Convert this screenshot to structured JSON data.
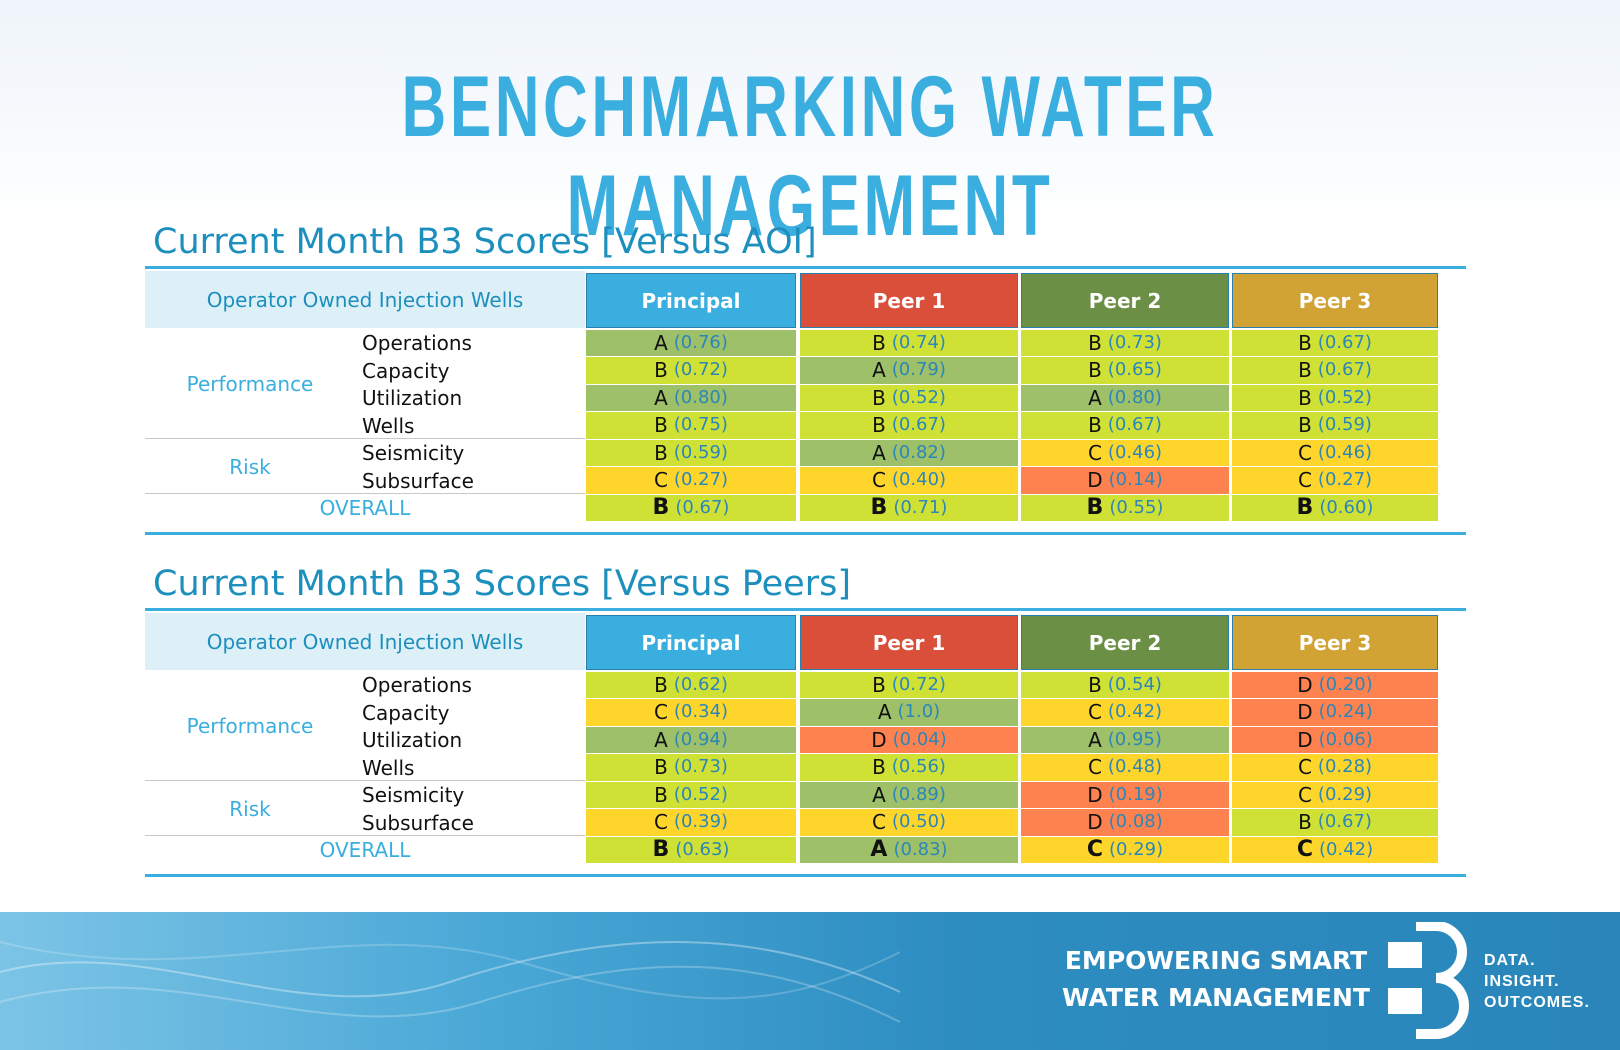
{
  "page_title": "BENCHMARKING WATER MANAGEMENT",
  "header_left": "Operator Owned Injection Wells",
  "columns": [
    {
      "label": "Principal",
      "color": "#3aaede"
    },
    {
      "label": "Peer 1",
      "color": "#d94f3a"
    },
    {
      "label": "Peer 2",
      "color": "#6b8f45"
    },
    {
      "label": "Peer 3",
      "color": "#d1a234"
    }
  ],
  "groups": {
    "performance": "Performance",
    "risk": "Risk",
    "overall": "OVERALL"
  },
  "metrics": [
    "Operations",
    "Capacity",
    "Utilization",
    "Wells",
    "Seismicity",
    "Subsurface"
  ],
  "grade_colors": {
    "A": "#9dc069",
    "B": "#d0e136",
    "C": "#fed62b",
    "D": "#fe8250"
  },
  "tables": [
    {
      "title": "Current Month B3 Scores [Versus AOI]",
      "rows": [
        [
          {
            "g": "A",
            "v": "(0.76)"
          },
          {
            "g": "B",
            "v": "(0.74)"
          },
          {
            "g": "B",
            "v": "(0.73)"
          },
          {
            "g": "B",
            "v": "(0.67)"
          }
        ],
        [
          {
            "g": "B",
            "v": "(0.72)"
          },
          {
            "g": "A",
            "v": "(0.79)"
          },
          {
            "g": "B",
            "v": "(0.65)"
          },
          {
            "g": "B",
            "v": "(0.67)"
          }
        ],
        [
          {
            "g": "A",
            "v": "(0.80)"
          },
          {
            "g": "B",
            "v": "(0.52)"
          },
          {
            "g": "A",
            "v": "(0.80)"
          },
          {
            "g": "B",
            "v": "(0.52)"
          }
        ],
        [
          {
            "g": "B",
            "v": "(0.75)"
          },
          {
            "g": "B",
            "v": "(0.67)"
          },
          {
            "g": "B",
            "v": "(0.67)"
          },
          {
            "g": "B",
            "v": "(0.59)"
          }
        ],
        [
          {
            "g": "B",
            "v": "(0.59)"
          },
          {
            "g": "A",
            "v": "(0.82)"
          },
          {
            "g": "C",
            "v": "(0.46)"
          },
          {
            "g": "C",
            "v": "(0.46)"
          }
        ],
        [
          {
            "g": "C",
            "v": "(0.27)"
          },
          {
            "g": "C",
            "v": "(0.40)"
          },
          {
            "g": "D",
            "v": "(0.14)"
          },
          {
            "g": "C",
            "v": "(0.27)"
          }
        ],
        [
          {
            "g": "B",
            "v": "(0.67)"
          },
          {
            "g": "B",
            "v": "(0.71)"
          },
          {
            "g": "B",
            "v": "(0.55)"
          },
          {
            "g": "B",
            "v": "(0.60)"
          }
        ]
      ]
    },
    {
      "title": "Current Month B3 Scores [Versus Peers]",
      "rows": [
        [
          {
            "g": "B",
            "v": "(0.62)"
          },
          {
            "g": "B",
            "v": "(0.72)"
          },
          {
            "g": "B",
            "v": "(0.54)"
          },
          {
            "g": "D",
            "v": "(0.20)"
          }
        ],
        [
          {
            "g": "C",
            "v": "(0.34)"
          },
          {
            "g": "A",
            "v": "(1.0)"
          },
          {
            "g": "C",
            "v": "(0.42)"
          },
          {
            "g": "D",
            "v": "(0.24)"
          }
        ],
        [
          {
            "g": "A",
            "v": "(0.94)"
          },
          {
            "g": "D",
            "v": "(0.04)"
          },
          {
            "g": "A",
            "v": "(0.95)"
          },
          {
            "g": "D",
            "v": "(0.06)"
          }
        ],
        [
          {
            "g": "B",
            "v": "(0.73)"
          },
          {
            "g": "B",
            "v": "(0.56)"
          },
          {
            "g": "C",
            "v": "(0.48)"
          },
          {
            "g": "C",
            "v": "(0.28)"
          }
        ],
        [
          {
            "g": "B",
            "v": "(0.52)"
          },
          {
            "g": "A",
            "v": "(0.89)"
          },
          {
            "g": "D",
            "v": "(0.19)"
          },
          {
            "g": "C",
            "v": "(0.29)"
          }
        ],
        [
          {
            "g": "C",
            "v": "(0.39)"
          },
          {
            "g": "C",
            "v": "(0.50)"
          },
          {
            "g": "D",
            "v": "(0.08)"
          },
          {
            "g": "B",
            "v": "(0.67)"
          }
        ],
        [
          {
            "g": "B",
            "v": "(0.63)"
          },
          {
            "g": "A",
            "v": "(0.83)"
          },
          {
            "g": "C",
            "v": "(0.29)"
          },
          {
            "g": "C",
            "v": "(0.42)"
          }
        ]
      ]
    }
  ],
  "footer": {
    "tagline_1": "EMPOWERING SMART",
    "tagline_2": "WATER MANAGEMENT",
    "logo_text_1": "DATA.",
    "logo_text_2": "INSIGHT.",
    "logo_text_3": "OUTCOMES."
  }
}
